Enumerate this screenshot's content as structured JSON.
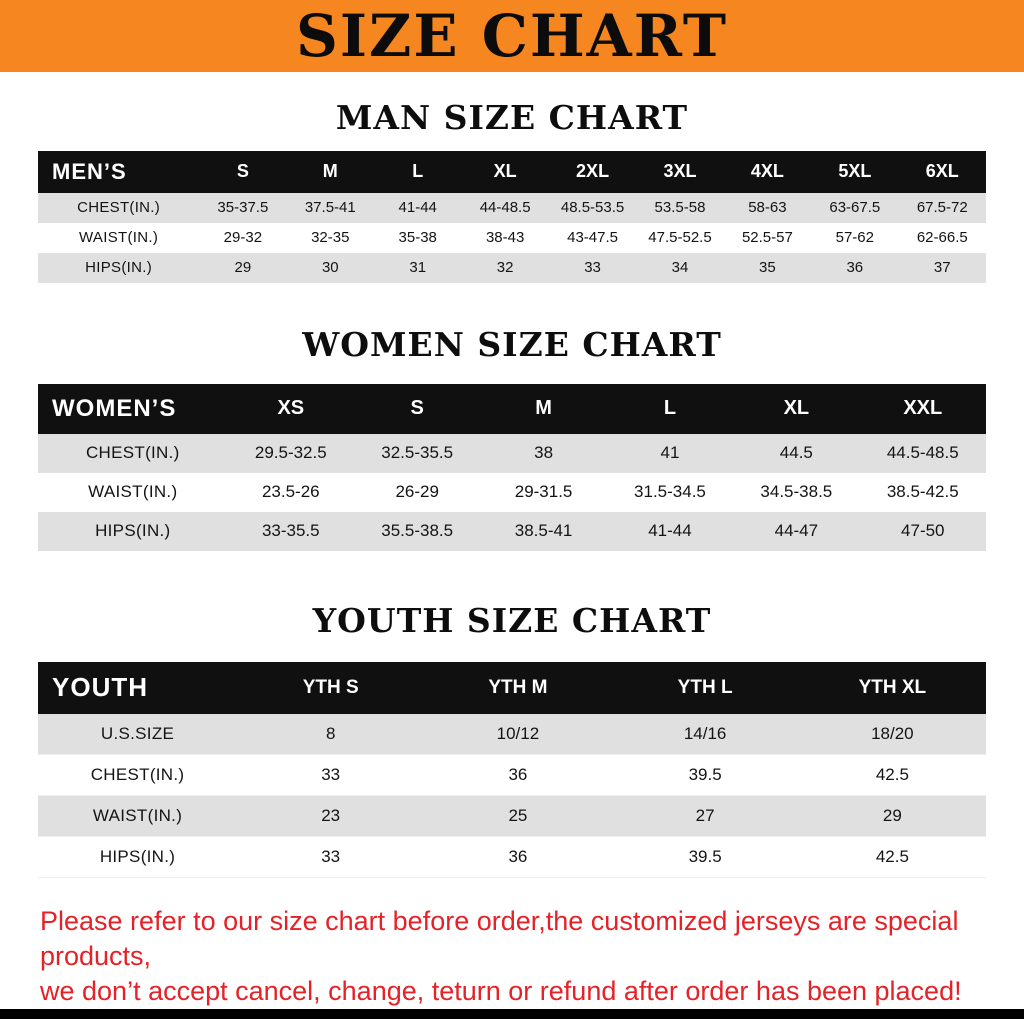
{
  "colors": {
    "banner_bg": "#f6861f",
    "header_bg": "#101010",
    "stripe": "#e0e0e0",
    "footer_text": "#e42227"
  },
  "banner": {
    "title": "SIZE CHART"
  },
  "men": {
    "heading": "MAN SIZE CHART",
    "header_label": "MEN’S",
    "columns": [
      "S",
      "M",
      "L",
      "XL",
      "2XL",
      "3XL",
      "4XL",
      "5XL",
      "6XL"
    ],
    "rows": [
      {
        "label": "CHEST(IN.)",
        "values": [
          "35-37.5",
          "37.5-41",
          "41-44",
          "44-48.5",
          "48.5-53.5",
          "53.5-58",
          "58-63",
          "63-67.5",
          "67.5-72"
        ]
      },
      {
        "label": "WAIST(IN.)",
        "values": [
          "29-32",
          "32-35",
          "35-38",
          "38-43",
          "43-47.5",
          "47.5-52.5",
          "52.5-57",
          "57-62",
          "62-66.5"
        ]
      },
      {
        "label": "HIPS(IN.)",
        "values": [
          "29",
          "30",
          "31",
          "32",
          "33",
          "34",
          "35",
          "36",
          "37"
        ]
      }
    ]
  },
  "women": {
    "heading": "WOMEN SIZE CHART",
    "header_label": "WOMEN’S",
    "columns": [
      "XS",
      "S",
      "M",
      "L",
      "XL",
      "XXL"
    ],
    "rows": [
      {
        "label": "CHEST(IN.)",
        "values": [
          "29.5-32.5",
          "32.5-35.5",
          "38",
          "41",
          "44.5",
          "44.5-48.5"
        ]
      },
      {
        "label": "WAIST(IN.)",
        "values": [
          "23.5-26",
          "26-29",
          "29-31.5",
          "31.5-34.5",
          "34.5-38.5",
          "38.5-42.5"
        ]
      },
      {
        "label": "HIPS(IN.)",
        "values": [
          "33-35.5",
          "35.5-38.5",
          "38.5-41",
          "41-44",
          "44-47",
          "47-50"
        ]
      }
    ]
  },
  "youth": {
    "heading": "YOUTH SIZE CHART",
    "header_label": "YOUTH",
    "columns": [
      "YTH S",
      "YTH M",
      "YTH L",
      "YTH XL"
    ],
    "rows": [
      {
        "label": "U.S.SIZE",
        "values": [
          "8",
          "10/12",
          "14/16",
          "18/20"
        ]
      },
      {
        "label": "CHEST(IN.)",
        "values": [
          "33",
          "36",
          "39.5",
          "42.5"
        ]
      },
      {
        "label": "WAIST(IN.)",
        "values": [
          "23",
          "25",
          "27",
          "29"
        ]
      },
      {
        "label": "HIPS(IN.)",
        "values": [
          "33",
          "36",
          "39.5",
          "42.5"
        ]
      }
    ]
  },
  "footer": {
    "line1": "Please refer to our size chart before order,the customized jerseys are special products,",
    "line2": "we don’t accept cancel, change, teturn or refund after order has been placed!"
  }
}
